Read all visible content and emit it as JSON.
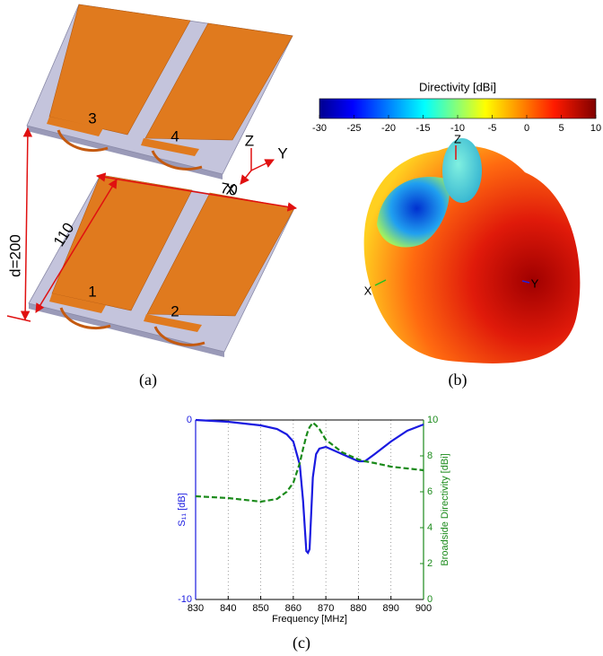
{
  "panel_a": {
    "port_labels": [
      "3",
      "4",
      "1",
      "2"
    ],
    "axes": [
      "Z",
      "Y",
      "X"
    ],
    "dimensions": {
      "width": "70",
      "distance": "d=200",
      "length": "110"
    },
    "caption": "(a)"
  },
  "panel_b": {
    "colorbar": {
      "title": "Directivity [dBi]",
      "clim": [
        -30,
        10
      ],
      "ticks": [
        -30,
        -25,
        -20,
        -15,
        -10,
        -5,
        0,
        5,
        10
      ]
    },
    "axes": [
      "Z",
      "X",
      "Y"
    ],
    "caption": "(b)"
  },
  "chart_data": {
    "type": "line",
    "xlabel": "Frequency [MHz]",
    "ylabel": "S₁₁ [dB]",
    "y2label": "Broadside Directivity [dBi]",
    "caption": "(c)",
    "x": [
      830,
      840,
      850,
      855,
      858,
      860,
      862,
      863,
      864,
      864.5,
      865,
      866,
      867,
      868,
      870,
      875,
      880,
      882,
      885,
      890,
      895,
      900
    ],
    "series": [
      {
        "name": "S11",
        "color": "#1a1ae0",
        "style": "solid",
        "axis": "y",
        "values": [
          0,
          -0.1,
          -0.3,
          -0.5,
          -0.8,
          -1.2,
          -2.5,
          -4.5,
          -7.3,
          -7.4,
          -7.2,
          -3.2,
          -1.9,
          -1.6,
          -1.5,
          -1.9,
          -2.3,
          -2.3,
          -1.9,
          -1.2,
          -0.6,
          -0.25
        ]
      },
      {
        "name": "Broadside Directivity",
        "color": "#1a8a1a",
        "style": "dashed",
        "axis": "y2",
        "values": [
          5.75,
          5.65,
          5.45,
          5.6,
          6.0,
          6.5,
          7.6,
          8.4,
          9.1,
          9.4,
          9.6,
          9.85,
          9.7,
          9.5,
          8.9,
          8.2,
          7.8,
          7.7,
          7.6,
          7.4,
          7.3,
          7.2
        ]
      }
    ],
    "xlim": [
      830,
      900
    ],
    "xticks": [
      830,
      840,
      850,
      860,
      870,
      880,
      890,
      900
    ],
    "ylim": [
      -10,
      0
    ],
    "yticks": [
      -10,
      0
    ],
    "y2lim": [
      0,
      10
    ],
    "y2ticks": [
      0,
      2,
      4,
      6,
      8,
      10
    ],
    "grid": "x"
  }
}
